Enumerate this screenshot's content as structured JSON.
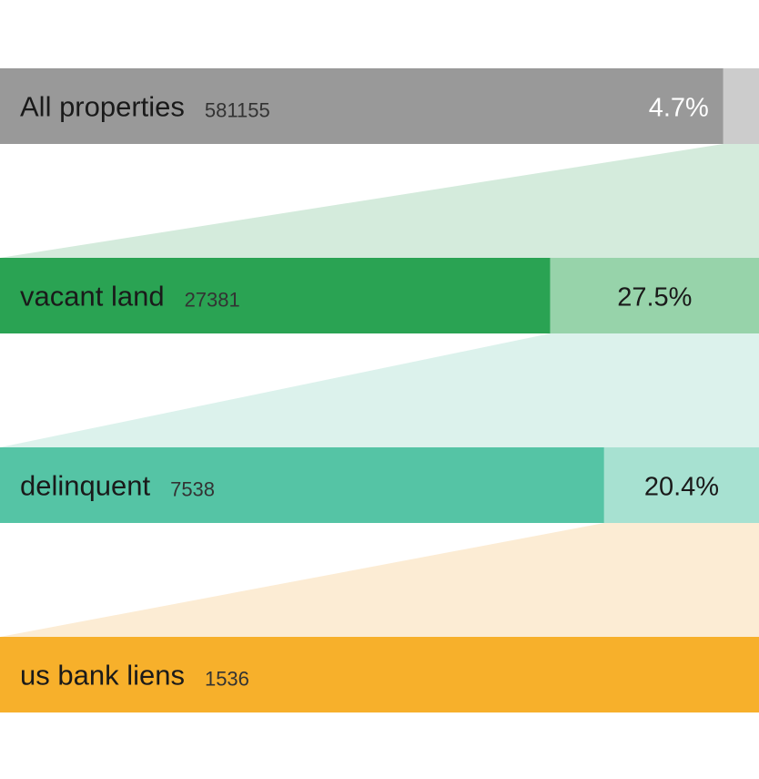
{
  "chart_data": {
    "type": "bar",
    "stages": [
      {
        "label": "All properties",
        "count": 581155,
        "count_text": "581155",
        "pct_text": "4.7%",
        "pct_next": 4.7,
        "color": "#999999",
        "rest_color": "#cccccc",
        "connector_color": "#d4ebdc"
      },
      {
        "label": "vacant land",
        "count": 27381,
        "count_text": "27381",
        "pct_text": "27.5%",
        "pct_next": 27.5,
        "color": "#2aa353",
        "rest_color": "#97d3aa",
        "connector_color": "#dcf2ec"
      },
      {
        "label": "delinquent",
        "count": 7538,
        "count_text": "7538",
        "pct_text": "20.4%",
        "pct_next": 20.4,
        "color": "#55c4a5",
        "rest_color": "#a7e1d1",
        "connector_color": "#fcecd4"
      },
      {
        "label": "us bank liens",
        "count": 1536,
        "count_text": "1536",
        "pct_text": "",
        "pct_next": null,
        "color": "#f7b02b",
        "rest_color": "#f7b02b",
        "connector_color": null
      }
    ]
  }
}
